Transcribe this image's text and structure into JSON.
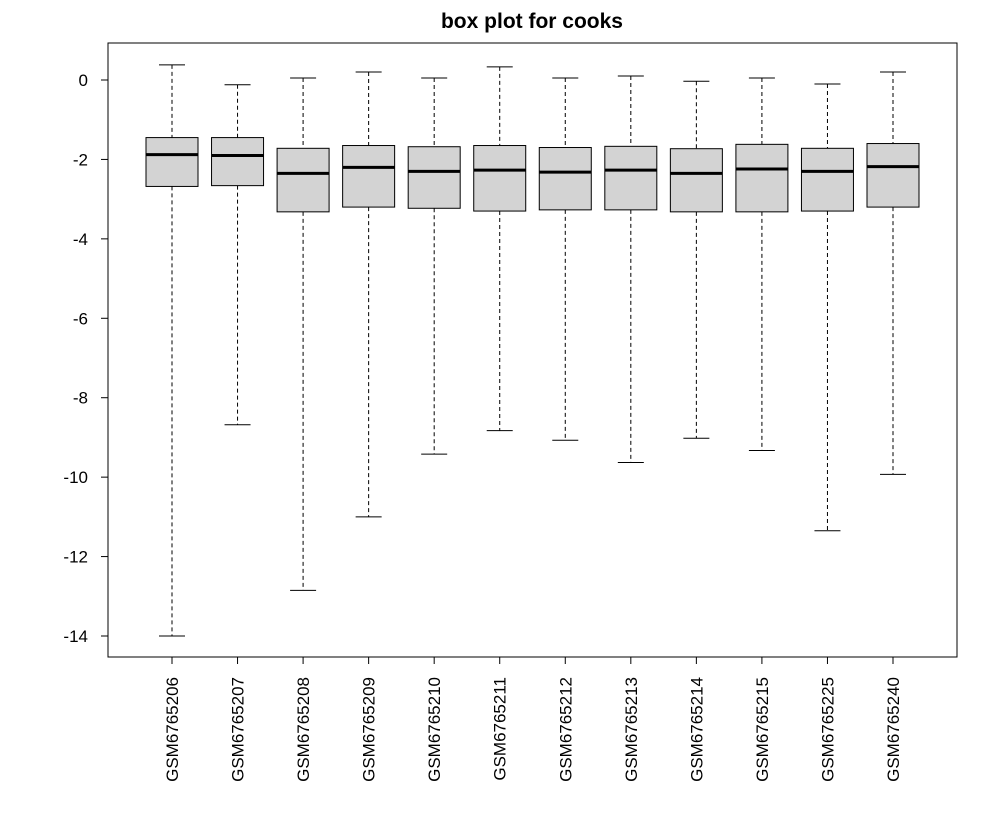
{
  "chart_data": {
    "type": "box",
    "title": "box plot for cooks",
    "xlabel": "",
    "ylabel": "",
    "ylim": [
      -14.5,
      0.9
    ],
    "yticks": [
      0,
      -2,
      -4,
      -6,
      -8,
      -10,
      -12,
      -14
    ],
    "ytick_labels": [
      "0",
      "-2",
      "-4",
      "-6",
      "-8",
      "-10",
      "-12",
      "-14"
    ],
    "box_fill": "#d3d3d3",
    "line_color": "#000000",
    "grid": false,
    "categories": [
      "GSM6765206",
      "GSM6765207",
      "GSM6765208",
      "GSM6765209",
      "GSM6765210",
      "GSM6765211",
      "GSM6765212",
      "GSM6765213",
      "GSM6765214",
      "GSM6765215",
      "GSM6765225",
      "GSM6765240"
    ],
    "boxes": [
      {
        "min": -14.0,
        "q1": -2.68,
        "median": -1.88,
        "q3": -1.45,
        "max": 0.38
      },
      {
        "min": -8.68,
        "q1": -2.66,
        "median": -1.9,
        "q3": -1.45,
        "max": -0.12
      },
      {
        "min": -12.85,
        "q1": -3.32,
        "median": -2.35,
        "q3": -1.72,
        "max": 0.05
      },
      {
        "min": -11.0,
        "q1": -3.2,
        "median": -2.2,
        "q3": -1.65,
        "max": 0.2
      },
      {
        "min": -9.42,
        "q1": -3.23,
        "median": -2.3,
        "q3": -1.68,
        "max": 0.05
      },
      {
        "min": -8.83,
        "q1": -3.3,
        "median": -2.27,
        "q3": -1.65,
        "max": 0.33
      },
      {
        "min": -9.07,
        "q1": -3.27,
        "median": -2.32,
        "q3": -1.7,
        "max": 0.05
      },
      {
        "min": -9.63,
        "q1": -3.27,
        "median": -2.27,
        "q3": -1.67,
        "max": 0.1
      },
      {
        "min": -9.02,
        "q1": -3.32,
        "median": -2.35,
        "q3": -1.73,
        "max": -0.03
      },
      {
        "min": -9.33,
        "q1": -3.32,
        "median": -2.24,
        "q3": -1.62,
        "max": 0.05
      },
      {
        "min": -11.35,
        "q1": -3.3,
        "median": -2.3,
        "q3": -1.72,
        "max": -0.1
      },
      {
        "min": -9.93,
        "q1": -3.2,
        "median": -2.18,
        "q3": -1.6,
        "max": 0.2
      }
    ]
  }
}
